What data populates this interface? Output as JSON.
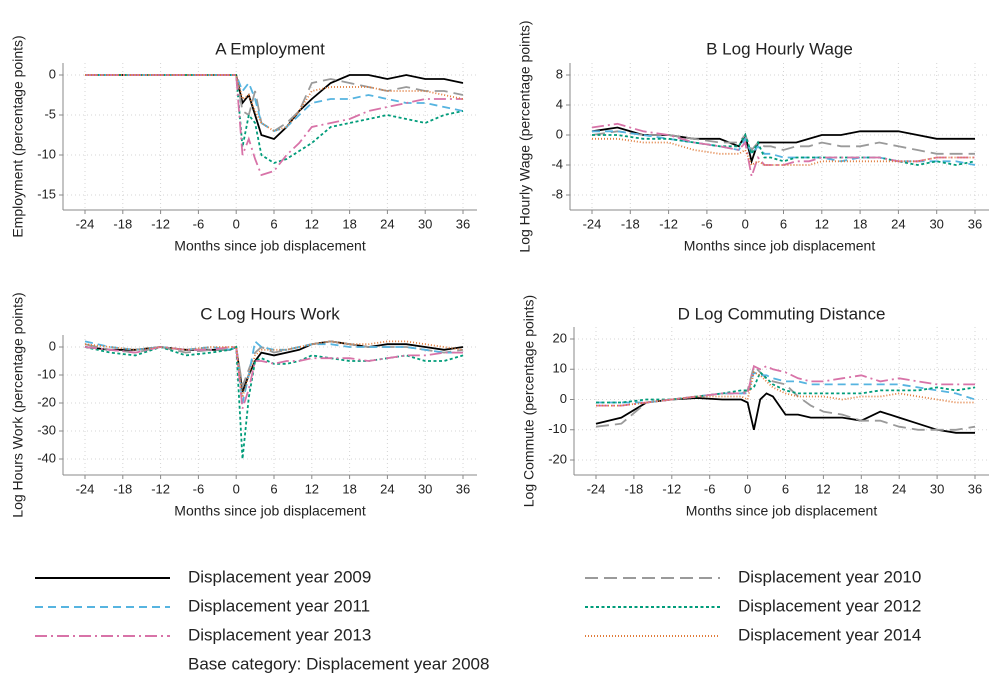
{
  "chart_data": [
    {
      "type": "line",
      "title": "A Employment",
      "xlabel": "Months since job displacement",
      "ylabel": "Employment (percentage points)",
      "x": [
        -24,
        -20,
        -16,
        -12,
        -8,
        -4,
        -1,
        0,
        1,
        2,
        3,
        4,
        6,
        8,
        10,
        12,
        15,
        18,
        21,
        24,
        27,
        30,
        33,
        36
      ],
      "xlim": [
        -24,
        36
      ],
      "ylim": [
        -15,
        0
      ],
      "xticks": [
        -24,
        -18,
        -12,
        -6,
        0,
        6,
        12,
        18,
        24,
        30,
        36
      ],
      "yticks": [
        -15,
        -10,
        -5,
        0
      ],
      "grid": true,
      "series": [
        {
          "name": "Displacement year 2009",
          "color": "#000000",
          "dash": "solid",
          "values": [
            0,
            0,
            0,
            0,
            0,
            0,
            0,
            0,
            -3.5,
            -2.5,
            -5,
            -7.5,
            -8,
            -6.5,
            -4.5,
            -3,
            -1,
            0,
            0,
            -0.5,
            0,
            -0.5,
            -0.5,
            -1
          ]
        },
        {
          "name": "Displacement year 2010",
          "color": "#9a9a9a",
          "dash": "longdash",
          "values": [
            0,
            0,
            0,
            0,
            0,
            0,
            0,
            0,
            -4.5,
            -5,
            -2,
            -6,
            -7,
            -6,
            -4.5,
            -1,
            -0.5,
            -1,
            -1.5,
            -2,
            -1.5,
            -2,
            -2,
            -2.5
          ]
        },
        {
          "name": "Displacement year 2011",
          "color": "#56b4e0",
          "dash": "dash",
          "values": [
            0,
            0,
            0,
            0,
            0,
            0,
            0,
            0,
            -2,
            -1,
            -3,
            -6,
            -7,
            -6.5,
            -5,
            -3.5,
            -3,
            -3,
            -2.5,
            -3,
            -3.5,
            -3.5,
            -4,
            -4.5
          ]
        },
        {
          "name": "Displacement year 2012",
          "color": "#009c7a",
          "dash": "shortdash",
          "values": [
            0,
            0,
            0,
            0,
            0,
            0,
            0,
            0,
            -9,
            -5,
            -6,
            -10,
            -11,
            -10.5,
            -9.5,
            -8.5,
            -6.5,
            -6,
            -5.5,
            -5,
            -5.5,
            -6,
            -5,
            -4.5
          ]
        },
        {
          "name": "Displacement year 2013",
          "color": "#d873a8",
          "dash": "dashdot",
          "values": [
            0,
            0,
            0,
            0,
            0,
            0,
            0,
            0,
            -10,
            -8,
            -10.5,
            -12.5,
            -12,
            -10,
            -8.5,
            -6.5,
            -6,
            -5.5,
            -4.5,
            -4,
            -3.5,
            -3,
            -3,
            -3
          ]
        },
        {
          "name": "Displacement year 2014",
          "color": "#e07b3a",
          "dash": "dot",
          "values": [
            0,
            0,
            0,
            0,
            0,
            0,
            0,
            0,
            -3,
            -2.5,
            -4.5,
            -6,
            -7,
            -6.5,
            -4.5,
            -2,
            -1.5,
            -1.5,
            -1.5,
            -2,
            -2,
            -2,
            -2.5,
            -3
          ]
        }
      ]
    },
    {
      "type": "line",
      "title": "B Log Hourly Wage",
      "xlabel": "Months since job displacement",
      "ylabel": "Log Hourly Wage (percentage points)",
      "x": [
        -24,
        -20,
        -16,
        -12,
        -8,
        -4,
        -1,
        0,
        1,
        2,
        3,
        4,
        6,
        8,
        10,
        12,
        15,
        18,
        21,
        24,
        27,
        30,
        33,
        36
      ],
      "xlim": [
        -24,
        36
      ],
      "ylim": [
        -8,
        8
      ],
      "xticks": [
        -24,
        -18,
        -12,
        -6,
        0,
        6,
        12,
        18,
        24,
        30,
        36
      ],
      "yticks": [
        -8,
        -4,
        0,
        4,
        8
      ],
      "grid": true,
      "series": [
        {
          "color": "#000000",
          "dash": "solid",
          "values": [
            0.5,
            1,
            0,
            0,
            -0.5,
            -0.5,
            -1.5,
            0,
            -3.5,
            -1,
            -1,
            -1,
            -1,
            -1,
            -0.5,
            0,
            0,
            0.5,
            0.5,
            0.5,
            0,
            -0.5,
            -0.5,
            -0.5
          ]
        },
        {
          "color": "#9a9a9a",
          "dash": "longdash",
          "values": [
            0,
            0.5,
            0,
            0,
            -0.5,
            -1,
            -1,
            0,
            -2,
            -1,
            -1.5,
            -1.5,
            -2,
            -1.5,
            -1.5,
            -1,
            -1.5,
            -1.5,
            -1,
            -1.5,
            -2,
            -2.5,
            -2.5,
            -2.5
          ]
        },
        {
          "color": "#56b4e0",
          "dash": "dash",
          "values": [
            0.5,
            0.5,
            0,
            -0.5,
            -1,
            -1.5,
            -2,
            -0.5,
            -2.5,
            -1.5,
            -2.5,
            -2.5,
            -3,
            -3,
            -3,
            -3,
            -3.5,
            -3,
            -3,
            -3.5,
            -3.5,
            -3.5,
            -3.5,
            -4
          ]
        },
        {
          "color": "#009c7a",
          "dash": "shortdash",
          "values": [
            0,
            0,
            -0.5,
            -0.5,
            -1,
            -1.5,
            -1.5,
            0,
            -2.5,
            -1,
            -3,
            -3,
            -3.5,
            -3,
            -3,
            -3,
            -3,
            -3,
            -3,
            -3.5,
            -4,
            -3.5,
            -4,
            -3.5
          ]
        },
        {
          "color": "#d873a8",
          "dash": "dashdot",
          "values": [
            1,
            1.5,
            0.5,
            0,
            -1,
            -1.5,
            -2,
            -1,
            -5.5,
            -3,
            -4,
            -4,
            -4,
            -3.5,
            -3.5,
            -3,
            -3,
            -3,
            -3,
            -3.5,
            -3.5,
            -3,
            -3,
            -3
          ]
        },
        {
          "color": "#e07b3a",
          "dash": "dot",
          "values": [
            -0.5,
            -0.5,
            -1,
            -1,
            -2,
            -2.5,
            -2.5,
            -2,
            -4,
            -3.5,
            -4,
            -4,
            -4,
            -4,
            -4,
            -3.5,
            -3.5,
            -3.5,
            -3.5,
            -3.5,
            -3.5,
            -3,
            -3,
            -3
          ]
        }
      ]
    },
    {
      "type": "line",
      "title": "C Log Hours Work",
      "xlabel": "Months since job displacement",
      "ylabel": "Log Hours Work (percentage points)",
      "x": [
        -24,
        -20,
        -16,
        -12,
        -8,
        -4,
        -1,
        0,
        1,
        2,
        3,
        4,
        6,
        8,
        10,
        12,
        15,
        18,
        21,
        24,
        27,
        30,
        33,
        36
      ],
      "xlim": [
        -24,
        36
      ],
      "ylim": [
        -40,
        0
      ],
      "xticks": [
        -24,
        -18,
        -12,
        -6,
        0,
        6,
        12,
        18,
        24,
        30,
        36
      ],
      "yticks": [
        -40,
        -30,
        -20,
        -10,
        0
      ],
      "grid": true,
      "series": [
        {
          "color": "#000000",
          "dash": "solid",
          "values": [
            0,
            -1,
            -1,
            0,
            -1,
            -1,
            -1,
            0,
            -16,
            -10,
            -5,
            -2,
            -3,
            -2,
            -1,
            1,
            2,
            1,
            0,
            1,
            1,
            0,
            -1,
            0
          ]
        },
        {
          "color": "#9a9a9a",
          "dash": "longdash",
          "values": [
            1,
            -1,
            -2,
            0,
            -2,
            -1,
            -1,
            0,
            -14,
            -8,
            -2,
            0,
            -2,
            -1,
            0,
            1,
            2,
            1,
            0,
            0,
            0,
            -1,
            -2,
            -1
          ]
        },
        {
          "color": "#56b4e0",
          "dash": "dash",
          "values": [
            2,
            0,
            -1,
            0,
            -1,
            0,
            -1,
            0,
            -20,
            -10,
            2,
            0,
            -1,
            -1,
            0,
            1,
            1,
            0,
            0,
            0,
            0,
            -1,
            -2,
            -2
          ]
        },
        {
          "color": "#009c7a",
          "dash": "shortdash",
          "values": [
            0,
            -2,
            -3,
            0,
            -3,
            -2,
            -1,
            0,
            -40,
            -18,
            -5,
            -4,
            -6,
            -6,
            -5,
            -3,
            -4,
            -5,
            -5,
            -4,
            -3,
            -5,
            -5,
            -3
          ]
        },
        {
          "color": "#d873a8",
          "dash": "dashdot",
          "values": [
            0,
            -1,
            -2,
            0,
            -1,
            -1,
            0,
            0,
            -22,
            -15,
            -5,
            -5,
            -6,
            -5,
            -5,
            -4,
            -4,
            -4,
            -5,
            -4,
            -3,
            -3,
            -2,
            -2
          ]
        },
        {
          "color": "#e07b3a",
          "dash": "dot",
          "values": [
            1,
            0,
            -1,
            0,
            -1,
            0,
            0,
            0,
            -18,
            -10,
            -3,
            -1,
            -1,
            -1,
            0,
            1,
            2,
            1,
            1,
            2,
            2,
            1,
            0,
            -1
          ]
        }
      ]
    },
    {
      "type": "line",
      "title": "D Log Commuting Distance",
      "xlabel": "Months since job displacement",
      "ylabel": "Log Commute (percentage points)",
      "x": [
        -24,
        -20,
        -16,
        -12,
        -8,
        -4,
        -1,
        0,
        1,
        2,
        3,
        4,
        6,
        8,
        10,
        12,
        15,
        18,
        21,
        24,
        27,
        30,
        33,
        36
      ],
      "xlim": [
        -24,
        36
      ],
      "ylim": [
        -20,
        20
      ],
      "xticks": [
        -24,
        -18,
        -12,
        -6,
        0,
        6,
        12,
        18,
        24,
        30,
        36
      ],
      "yticks": [
        -20,
        -10,
        0,
        10,
        20
      ],
      "grid": true,
      "series": [
        {
          "color": "#000000",
          "dash": "solid",
          "values": [
            -8,
            -6,
            -1,
            0,
            0.5,
            0,
            0,
            -1,
            -10,
            0,
            2,
            1,
            -5,
            -5,
            -6,
            -6,
            -6,
            -7,
            -4,
            -6,
            -8,
            -10,
            -11,
            -11
          ]
        },
        {
          "color": "#9a9a9a",
          "dash": "longdash",
          "values": [
            -9,
            -8,
            -1,
            0,
            1,
            2,
            2,
            3,
            11,
            9,
            7,
            6,
            5,
            1,
            -2,
            -4,
            -5,
            -7,
            -7,
            -9,
            -10,
            -10,
            -10,
            -9
          ]
        },
        {
          "color": "#56b4e0",
          "dash": "dash",
          "values": [
            -1,
            -1,
            -1,
            0,
            1,
            2,
            2,
            2,
            9,
            8,
            8,
            7,
            6,
            6,
            5,
            5,
            5,
            5,
            5,
            5,
            4,
            3,
            2,
            0
          ]
        },
        {
          "color": "#009c7a",
          "dash": "shortdash",
          "values": [
            -1,
            -1,
            0,
            0,
            1,
            2,
            3,
            3,
            4,
            9,
            7,
            5,
            3,
            2,
            2,
            2,
            2,
            2,
            3,
            3,
            3,
            4,
            3,
            4
          ]
        },
        {
          "color": "#d873a8",
          "dash": "dashdot",
          "values": [
            -2,
            -2,
            -1,
            0,
            1,
            2,
            2,
            2,
            11,
            10,
            11,
            10,
            9,
            7,
            6,
            6,
            7,
            8,
            6,
            7,
            6,
            5,
            5,
            5
          ]
        },
        {
          "color": "#e07b3a",
          "dash": "dot",
          "values": [
            -2,
            -2,
            -1,
            0,
            1,
            1,
            1,
            0,
            9,
            8,
            6,
            4,
            2,
            1,
            1,
            1,
            0,
            1,
            1,
            2,
            1,
            0,
            -1,
            -1
          ]
        }
      ]
    }
  ],
  "legend_note": "Base category: Displacement year 2008"
}
